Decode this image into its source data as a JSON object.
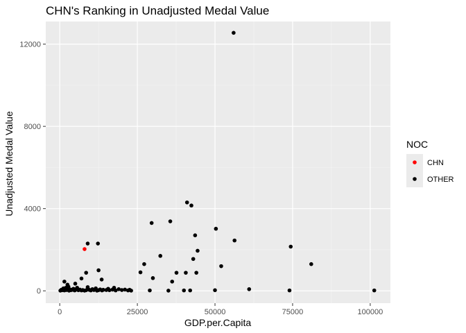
{
  "chart_data": {
    "type": "scatter",
    "title": "CHN's Ranking in Unadjusted Medal Value",
    "xlabel": "GDP.per.Capita",
    "ylabel": "Unadjusted Medal Value",
    "xlim": [
      -4500,
      106500
    ],
    "ylim": [
      -600,
      13100
    ],
    "xticks": [
      0,
      25000,
      50000,
      75000,
      100000
    ],
    "xtick_labels": [
      "0",
      "25000",
      "50000",
      "75000",
      "100000"
    ],
    "yticks": [
      0,
      4000,
      8000,
      12000
    ],
    "ytick_labels": [
      "0",
      "4000",
      "8000",
      "12000"
    ],
    "grid": true,
    "legend": {
      "title": "NOC",
      "position": "right",
      "entries": [
        {
          "label": "CHN",
          "color": "#ff0000"
        },
        {
          "label": "OTHER",
          "color": "#000000"
        }
      ]
    },
    "colors": {
      "panel": "#ebebeb",
      "grid_major": "#ffffff",
      "grid_minor": "#f4f4f4",
      "tick": "#333333"
    },
    "series": [
      {
        "name": "CHN",
        "color": "#ff0000",
        "x": [
          8000
        ],
        "y": [
          2030
        ]
      },
      {
        "name": "OTHER",
        "color": "#000000",
        "x": [
          200,
          500,
          800,
          1000,
          1200,
          1500,
          1700,
          2000,
          2200,
          2500,
          2800,
          3000,
          3300,
          3600,
          4000,
          4400,
          4800,
          5000,
          5300,
          5600,
          6000,
          6500,
          7000,
          7400,
          8000,
          8500,
          9000,
          9500,
          10000,
          10500,
          11000,
          11600,
          12000,
          12500,
          13000,
          13600,
          14000,
          15000,
          15600,
          16000,
          17000,
          17500,
          18000,
          19000,
          20000,
          21000,
          22000,
          22500,
          23000,
          1500,
          2500,
          5000,
          7000,
          8500,
          9000,
          12300,
          12500,
          13500,
          26000,
          27200,
          29000,
          29600,
          30000,
          32400,
          35000,
          35600,
          36200,
          37600,
          40000,
          40600,
          41000,
          42000,
          42400,
          43000,
          43600,
          44000,
          44400,
          50000,
          50300,
          52000,
          56000,
          56300,
          61000,
          74000,
          74400,
          81000,
          101300
        ],
        "y": [
          10,
          50,
          30,
          80,
          120,
          20,
          60,
          150,
          40,
          90,
          200,
          10,
          70,
          30,
          50,
          100,
          20,
          40,
          80,
          150,
          30,
          60,
          20,
          40,
          10,
          30,
          180,
          50,
          20,
          80,
          40,
          120,
          10,
          30,
          70,
          20,
          50,
          40,
          100,
          30,
          60,
          150,
          20,
          80,
          40,
          60,
          20,
          50,
          10,
          450,
          300,
          350,
          600,
          880,
          2300,
          2300,
          1000,
          550,
          900,
          1300,
          20,
          3300,
          620,
          1700,
          10,
          3380,
          450,
          880,
          20,
          880,
          4300,
          20,
          4150,
          1550,
          2700,
          880,
          1950,
          30,
          3020,
          1200,
          12550,
          2450,
          80,
          20,
          2150,
          1300,
          20
        ]
      }
    ]
  }
}
